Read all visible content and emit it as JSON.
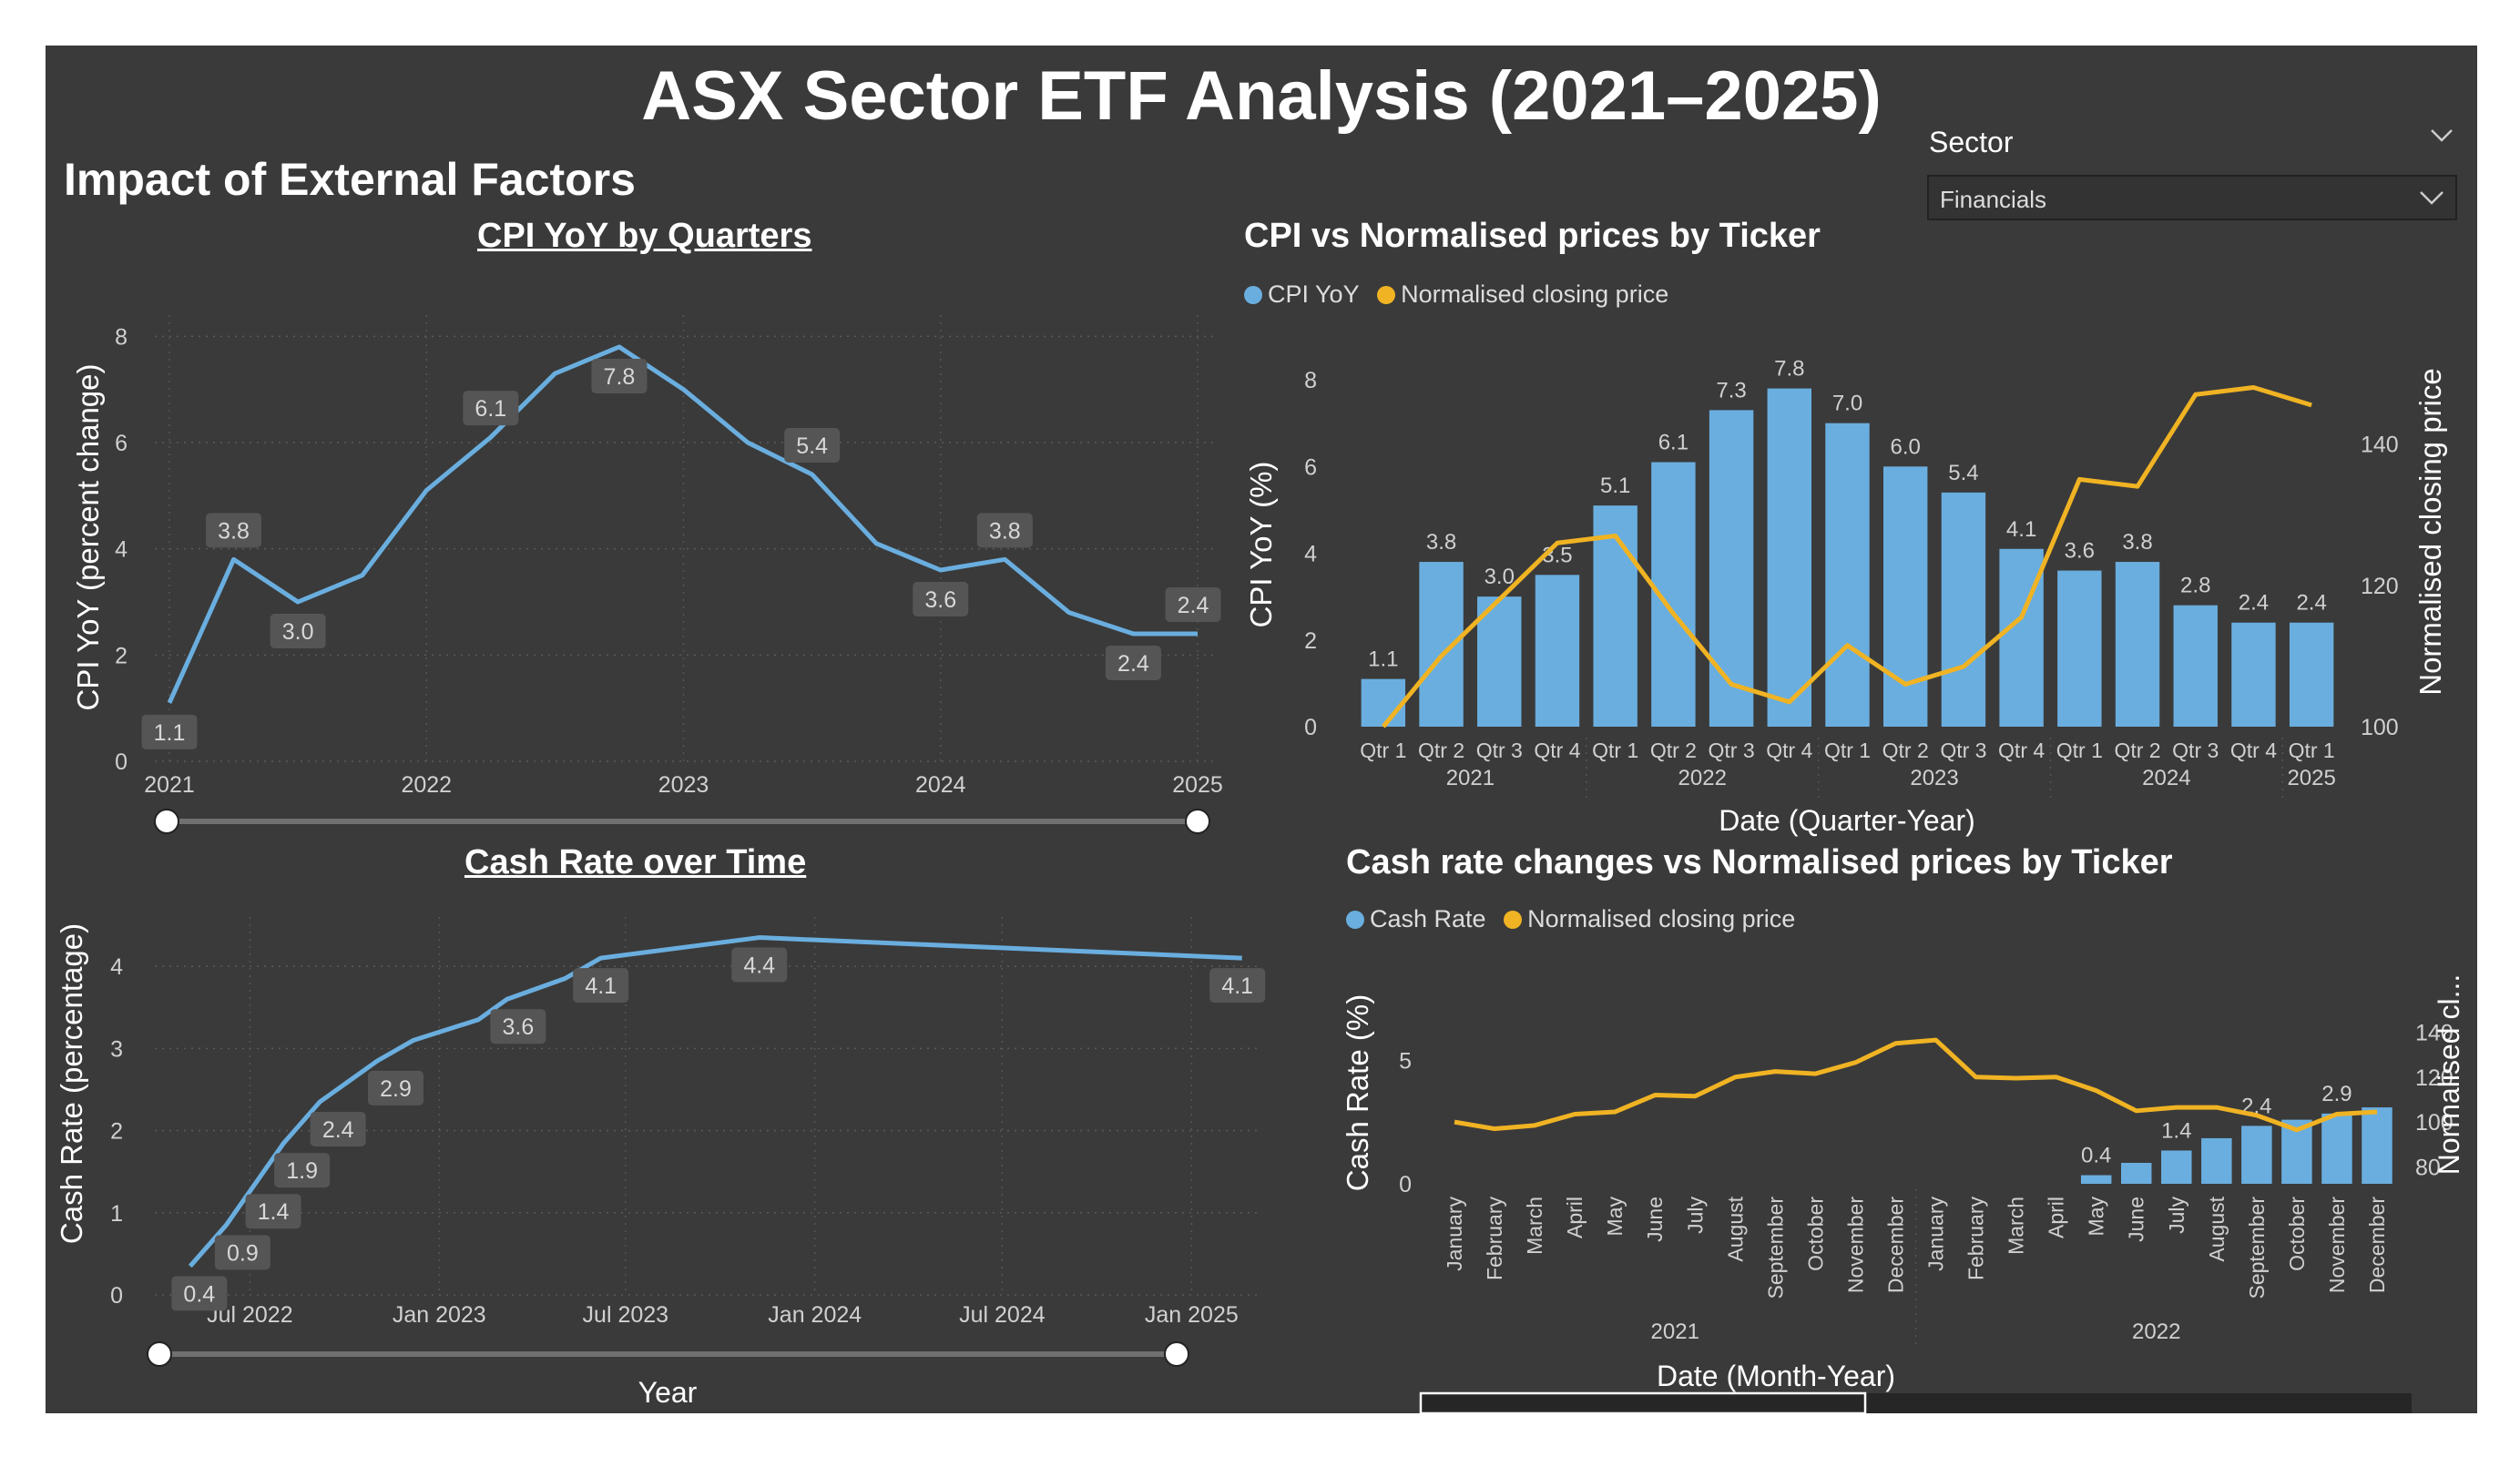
{
  "title": "ASX Sector ETF Analysis (2021–2025)",
  "subtitle": "Impact of External Factors",
  "slicer": {
    "label": "Sector",
    "value": "Financials"
  },
  "colors": {
    "bar": "#6aaedf",
    "line_blue": "#6aaedf",
    "line_gold": "#f0b323",
    "background": "#3a3a3a"
  },
  "chart_data": [
    {
      "id": "cpi_line",
      "type": "line",
      "title": "CPI YoY by Quarters",
      "xlabel": "",
      "ylabel": "CPI YoY (percent change)",
      "x": [
        "2021-Q1",
        "2021-Q2",
        "2021-Q3",
        "2021-Q4",
        "2022-Q1",
        "2022-Q2",
        "2022-Q3",
        "2022-Q4",
        "2023-Q1",
        "2023-Q2",
        "2023-Q3",
        "2023-Q4",
        "2024-Q1",
        "2024-Q2",
        "2024-Q3",
        "2024-Q4",
        "2025-Q1"
      ],
      "values": [
        1.1,
        3.8,
        3.0,
        3.5,
        5.1,
        6.1,
        7.3,
        7.8,
        7.0,
        6.0,
        5.4,
        4.1,
        3.6,
        3.8,
        2.8,
        2.4,
        2.4
      ],
      "labeled_points": [
        {
          "x": "2021-Q1",
          "label": "1.1"
        },
        {
          "x": "2021-Q2",
          "label": "3.8"
        },
        {
          "x": "2021-Q3",
          "label": "3.0"
        },
        {
          "x": "2022-Q2",
          "label": "6.1"
        },
        {
          "x": "2022-Q4",
          "label": "7.8"
        },
        {
          "x": "2023-Q3",
          "label": "5.4"
        },
        {
          "x": "2024-Q1",
          "label": "3.6"
        },
        {
          "x": "2024-Q2",
          "label": "3.8"
        },
        {
          "x": "2024-Q4",
          "label": "2.4"
        },
        {
          "x": "2025-Q1",
          "label": "2.4"
        }
      ],
      "x_ticks": [
        "2021",
        "2022",
        "2023",
        "2024",
        "2025"
      ],
      "y_ticks": [
        "0",
        "2",
        "4",
        "6",
        "8"
      ],
      "ylim": [
        0,
        8.4
      ]
    },
    {
      "id": "cpi_combo",
      "type": "bar",
      "title": "CPI vs Normalised prices by Ticker",
      "xlabel": "Date (Quarter-Year)",
      "ylabel": "CPI YoY (%)",
      "ylabel_right": "Normalised closing price",
      "legend": [
        "CPI YoY",
        "Normalised closing price"
      ],
      "categories": [
        "Qtr 1",
        "Qtr 2",
        "Qtr 3",
        "Qtr 4",
        "Qtr 1",
        "Qtr 2",
        "Qtr 3",
        "Qtr 4",
        "Qtr 1",
        "Qtr 2",
        "Qtr 3",
        "Qtr 4",
        "Qtr 1",
        "Qtr 2",
        "Qtr 3",
        "Qtr 4",
        "Qtr 1"
      ],
      "groups": [
        {
          "label": "2021",
          "start": 0,
          "end": 3
        },
        {
          "label": "2022",
          "start": 4,
          "end": 7
        },
        {
          "label": "2023",
          "start": 8,
          "end": 11
        },
        {
          "label": "2024",
          "start": 12,
          "end": 15
        },
        {
          "label": "2025",
          "start": 16,
          "end": 16
        }
      ],
      "series": [
        {
          "name": "CPI YoY",
          "values": [
            1.1,
            3.8,
            3.0,
            3.5,
            5.1,
            6.1,
            7.3,
            7.8,
            7.0,
            6.0,
            5.4,
            4.1,
            3.6,
            3.8,
            2.8,
            2.4,
            2.4
          ],
          "labels": [
            "1.1",
            "3.8",
            "3.0",
            "3.5",
            "5.1",
            "6.1",
            "7.3",
            "7.8",
            "7.0",
            "6.0",
            "5.4",
            "4.1",
            "3.6",
            "3.8",
            "2.8",
            "2.4",
            "2.4"
          ]
        },
        {
          "name": "Normalised closing price",
          "values": [
            100,
            110,
            118,
            126,
            127,
            116,
            106,
            103.5,
            111.5,
            106,
            108.5,
            115.5,
            135,
            134,
            147,
            148,
            145.5
          ]
        }
      ],
      "y_ticks": [
        "0",
        "2",
        "4",
        "6",
        "8"
      ],
      "ylim": [
        0,
        8.4
      ],
      "y2_ticks": [
        "100",
        "120",
        "140"
      ],
      "y2lim": [
        100,
        150
      ]
    },
    {
      "id": "cash_line",
      "type": "line",
      "title": "Cash Rate over Time",
      "xlabel": "Year",
      "ylabel": "Cash Rate (percentage)",
      "x": [
        "2022-05-04",
        "2022-06-08",
        "2022-07-06",
        "2022-08-03",
        "2022-09-07",
        "2022-10-05",
        "2022-11-02",
        "2022-12-07",
        "2023-02-08",
        "2023-03-08",
        "2023-05-03",
        "2023-06-07",
        "2023-11-08",
        "2025-02-19"
      ],
      "values": [
        0.35,
        0.85,
        1.35,
        1.85,
        2.35,
        2.6,
        2.85,
        3.1,
        3.35,
        3.6,
        3.85,
        4.1,
        4.35,
        4.1
      ],
      "labeled_points": [
        {
          "x": "2022-05-04",
          "label": "0.4"
        },
        {
          "x": "2022-06-08",
          "label": "0.9"
        },
        {
          "x": "2022-07-06",
          "label": "1.4"
        },
        {
          "x": "2022-08-03",
          "label": "1.9"
        },
        {
          "x": "2022-09-07",
          "label": "2.4"
        },
        {
          "x": "2022-11-02",
          "label": "2.9"
        },
        {
          "x": "2023-03-08",
          "label": "3.6"
        },
        {
          "x": "2023-06-07",
          "label": "4.1"
        },
        {
          "x": "2023-11-08",
          "label": "4.4"
        },
        {
          "x": "2025-02-19",
          "label": "4.1"
        }
      ],
      "x_ticks": [
        "Jul 2022",
        "Jan 2023",
        "Jul 2023",
        "Jan 2024",
        "Jul 2024",
        "Jan 2025"
      ],
      "x_tick_dates": [
        "2022-07-01",
        "2023-01-01",
        "2023-07-01",
        "2024-01-01",
        "2024-07-01",
        "2025-01-01"
      ],
      "xlim": [
        "2022-04-20",
        "2025-03-01"
      ],
      "y_ticks": [
        "0",
        "1",
        "2",
        "3",
        "4"
      ],
      "ylim": [
        0,
        4.6
      ]
    },
    {
      "id": "cash_combo",
      "type": "bar",
      "title": "Cash rate changes vs Normalised prices by Ticker",
      "xlabel": "Date (Month-Year)",
      "ylabel": "Cash Rate (%)",
      "ylabel_right": "Normalised cl...",
      "legend": [
        "Cash Rate",
        "Normalised closing price"
      ],
      "categories": [
        "January",
        "February",
        "March",
        "April",
        "May",
        "June",
        "July",
        "August",
        "September",
        "October",
        "November",
        "December",
        "January",
        "February",
        "March",
        "April",
        "May",
        "June",
        "July",
        "August",
        "September",
        "October",
        "November",
        "December"
      ],
      "groups": [
        {
          "label": "2021",
          "start": 0,
          "end": 11
        },
        {
          "label": "2022",
          "start": 12,
          "end": 23
        }
      ],
      "series": [
        {
          "name": "Cash Rate",
          "values": [
            0,
            0,
            0,
            0,
            0,
            0,
            0,
            0,
            0,
            0,
            0,
            0,
            0,
            0,
            0,
            0,
            0.35,
            0.85,
            1.35,
            1.85,
            2.35,
            2.6,
            2.85,
            3.1
          ],
          "labels": [
            "",
            "",
            "",
            "",
            "",
            "",
            "",
            "",
            "",
            "",
            "",
            "",
            "",
            "",
            "",
            "",
            "0.4",
            "",
            "1.4",
            "",
            "2.4",
            "",
            "2.9",
            ""
          ]
        },
        {
          "name": "Normalised closing price",
          "values": [
            100,
            97,
            98.5,
            103.5,
            104.5,
            112,
            111.5,
            120,
            122.5,
            121.5,
            126.5,
            135,
            136.5,
            120,
            119.5,
            120,
            114,
            105,
            106.5,
            106.5,
            103,
            96.5,
            103.5,
            104.5
          ]
        }
      ],
      "y_ticks": [
        "0",
        "5"
      ],
      "ylim": [
        0,
        6.5
      ],
      "y2_ticks": [
        "80",
        "100",
        "120",
        "140"
      ],
      "y2lim": [
        72.5,
        149.5
      ]
    }
  ]
}
